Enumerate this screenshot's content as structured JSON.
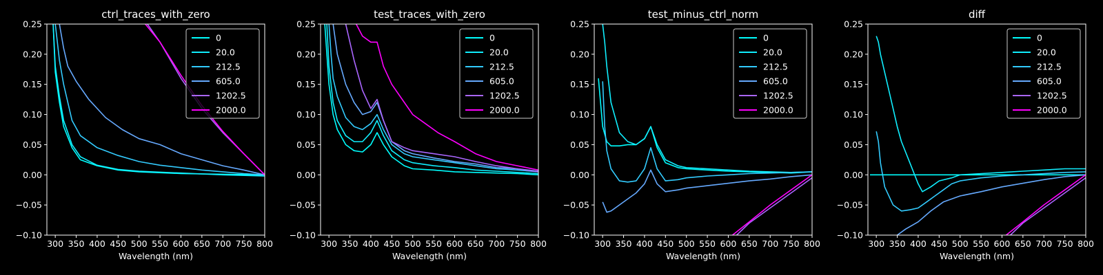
{
  "legend": {
    "labels": [
      "0",
      "20.0",
      "212.5",
      "605.0",
      "1202.5",
      "2000.0"
    ],
    "colors": [
      "#00ffff",
      "#10efff",
      "#33ccff",
      "#66aaff",
      "#aa66ff",
      "#ff00ff"
    ]
  },
  "chart_data": [
    {
      "type": "line",
      "title": "ctrl_traces_with_zero",
      "xlabel": "Wavelength (nm)",
      "xlim": [
        280,
        800
      ],
      "ylim": [
        -0.1,
        0.25
      ],
      "xticks": [
        "300",
        "350",
        "400",
        "450",
        "500",
        "550",
        "600",
        "650",
        "700",
        "750",
        "800"
      ],
      "yticks": [
        "−0.10",
        "−0.05",
        "0.00",
        "0.05",
        "0.10",
        "0.15",
        "0.20",
        "0.25"
      ],
      "series": [
        {
          "name": "0",
          "color": "#00ffff",
          "x": [
            295,
            300,
            310,
            320,
            340,
            360,
            400,
            450,
            500,
            600,
            700,
            800
          ],
          "y": [
            0.25,
            0.17,
            0.12,
            0.08,
            0.045,
            0.025,
            0.015,
            0.008,
            0.005,
            0.002,
            0.001,
            0.0
          ]
        },
        {
          "name": "20.0",
          "color": "#10efff",
          "x": [
            295,
            300,
            310,
            320,
            340,
            360,
            400,
            450,
            500,
            600,
            700,
            800
          ],
          "y": [
            0.25,
            0.18,
            0.13,
            0.09,
            0.05,
            0.03,
            0.016,
            0.009,
            0.006,
            0.003,
            0.0,
            -0.002
          ]
        },
        {
          "name": "212.5",
          "color": "#33ccff",
          "x": [
            300,
            310,
            320,
            340,
            360,
            400,
            450,
            500,
            550,
            600,
            650,
            700,
            750,
            800
          ],
          "y": [
            0.25,
            0.19,
            0.15,
            0.09,
            0.065,
            0.045,
            0.032,
            0.022,
            0.016,
            0.012,
            0.008,
            0.005,
            0.002,
            0.0
          ]
        },
        {
          "name": "605.0",
          "color": "#66aaff",
          "x": [
            310,
            320,
            330,
            350,
            380,
            420,
            460,
            500,
            550,
            600,
            650,
            700,
            750,
            800
          ],
          "y": [
            0.25,
            0.21,
            0.18,
            0.155,
            0.125,
            0.095,
            0.075,
            0.06,
            0.05,
            0.035,
            0.025,
            0.015,
            0.008,
            0.0
          ]
        },
        {
          "name": "1202.5",
          "color": "#aa66ff",
          "x": [
            520,
            550,
            600,
            650,
            700,
            750,
            800
          ],
          "y": [
            0.25,
            0.22,
            0.16,
            0.11,
            0.07,
            0.035,
            0.0
          ]
        },
        {
          "name": "2000.0",
          "color": "#ff00ff",
          "x": [
            515,
            550,
            600,
            650,
            700,
            750,
            800
          ],
          "y": [
            0.25,
            0.22,
            0.165,
            0.115,
            0.072,
            0.035,
            0.0
          ]
        }
      ]
    },
    {
      "type": "line",
      "title": "test_traces_with_zero",
      "xlabel": "Wavelength (nm)",
      "xlim": [
        280,
        800
      ],
      "ylim": [
        -0.1,
        0.25
      ],
      "xticks": [
        "300",
        "350",
        "400",
        "450",
        "500",
        "550",
        "600",
        "650",
        "700",
        "750",
        "800"
      ],
      "yticks": [
        "−0.10",
        "−0.05",
        "0.00",
        "0.05",
        "0.10",
        "0.15",
        "0.20",
        "0.25"
      ],
      "series": [
        {
          "name": "0",
          "color": "#00ffff",
          "x": [
            290,
            300,
            310,
            320,
            340,
            360,
            380,
            400,
            415,
            430,
            450,
            480,
            500,
            550,
            600,
            650,
            700,
            750,
            800
          ],
          "y": [
            0.25,
            0.15,
            0.1,
            0.075,
            0.05,
            0.04,
            0.038,
            0.05,
            0.07,
            0.05,
            0.03,
            0.015,
            0.01,
            0.008,
            0.005,
            0.004,
            0.003,
            0.002,
            0.0
          ]
        },
        {
          "name": "20.0",
          "color": "#10efff",
          "x": [
            295,
            300,
            310,
            320,
            340,
            360,
            380,
            400,
            415,
            430,
            450,
            480,
            500,
            550,
            600,
            650,
            700,
            750,
            800
          ],
          "y": [
            0.25,
            0.18,
            0.12,
            0.09,
            0.065,
            0.055,
            0.055,
            0.07,
            0.09,
            0.065,
            0.04,
            0.025,
            0.02,
            0.015,
            0.012,
            0.008,
            0.006,
            0.004,
            0.002
          ]
        },
        {
          "name": "212.5",
          "color": "#33ccff",
          "x": [
            300,
            305,
            310,
            320,
            340,
            360,
            380,
            400,
            415,
            430,
            450,
            480,
            500,
            550,
            600,
            650,
            700,
            750,
            800
          ],
          "y": [
            0.25,
            0.2,
            0.16,
            0.13,
            0.095,
            0.08,
            0.075,
            0.085,
            0.1,
            0.075,
            0.05,
            0.035,
            0.03,
            0.025,
            0.02,
            0.015,
            0.01,
            0.008,
            0.005
          ]
        },
        {
          "name": "605.0",
          "color": "#66aaff",
          "x": [
            310,
            320,
            340,
            360,
            380,
            400,
            415,
            430,
            450,
            480,
            500,
            550,
            600,
            650,
            700,
            750,
            800
          ],
          "y": [
            0.25,
            0.2,
            0.15,
            0.12,
            0.1,
            0.105,
            0.12,
            0.09,
            0.055,
            0.04,
            0.035,
            0.028,
            0.022,
            0.018,
            0.012,
            0.01,
            0.006
          ]
        },
        {
          "name": "1202.5",
          "color": "#aa66ff",
          "x": [
            340,
            360,
            380,
            400,
            415,
            430,
            450,
            480,
            500,
            550,
            600,
            650,
            700,
            750,
            800
          ],
          "y": [
            0.25,
            0.19,
            0.14,
            0.11,
            0.125,
            0.09,
            0.055,
            0.045,
            0.04,
            0.035,
            0.03,
            0.022,
            0.015,
            0.01,
            0.005
          ]
        },
        {
          "name": "2000.0",
          "color": "#ff00ff",
          "x": [
            365,
            380,
            400,
            415,
            430,
            450,
            480,
            500,
            530,
            560,
            600,
            650,
            700,
            750,
            800
          ],
          "y": [
            0.25,
            0.23,
            0.22,
            0.22,
            0.18,
            0.15,
            0.12,
            0.1,
            0.085,
            0.07,
            0.055,
            0.035,
            0.022,
            0.015,
            0.008
          ]
        }
      ]
    },
    {
      "type": "line",
      "title": "test_minus_ctrl_norm",
      "xlabel": "Wavelength (nm)",
      "xlim": [
        280,
        800
      ],
      "ylim": [
        -0.1,
        0.25
      ],
      "xticks": [
        "300",
        "350",
        "400",
        "450",
        "500",
        "550",
        "600",
        "650",
        "700",
        "750",
        "800"
      ],
      "yticks": [
        "−0.10",
        "−0.05",
        "0.00",
        "0.05",
        "0.10",
        "0.15",
        "0.20",
        "0.25"
      ],
      "series": [
        {
          "name": "0",
          "color": "#00ffff",
          "x": [
            290,
            300,
            310,
            320,
            340,
            360,
            380,
            400,
            415,
            430,
            450,
            480,
            500,
            550,
            600,
            650,
            700,
            750,
            800
          ],
          "y": [
            0.16,
            0.08,
            0.055,
            0.048,
            0.048,
            0.05,
            0.05,
            0.06,
            0.08,
            0.045,
            0.02,
            0.012,
            0.01,
            0.008,
            0.006,
            0.005,
            0.004,
            0.003,
            0.005
          ]
        },
        {
          "name": "20.0",
          "color": "#10efff",
          "x": [
            300,
            305,
            310,
            320,
            340,
            360,
            380,
            400,
            415,
            430,
            450,
            480,
            500,
            550,
            600,
            650,
            700,
            750,
            800
          ],
          "y": [
            0.25,
            0.22,
            0.18,
            0.12,
            0.07,
            0.055,
            0.05,
            0.06,
            0.08,
            0.05,
            0.025,
            0.015,
            0.012,
            0.01,
            0.008,
            0.006,
            0.005,
            0.004,
            0.005
          ]
        },
        {
          "name": "212.5",
          "color": "#33ccff",
          "x": [
            300,
            305,
            310,
            320,
            340,
            360,
            380,
            400,
            415,
            430,
            450,
            480,
            500,
            550,
            600,
            650,
            700,
            750,
            800
          ],
          "y": [
            0.155,
            0.08,
            0.04,
            0.01,
            -0.01,
            -0.012,
            -0.01,
            0.01,
            0.045,
            0.01,
            -0.01,
            -0.008,
            -0.005,
            -0.002,
            0.0,
            0.002,
            0.003,
            0.004,
            0.005
          ]
        },
        {
          "name": "605.0",
          "color": "#66aaff",
          "x": [
            300,
            310,
            320,
            340,
            360,
            380,
            400,
            415,
            430,
            450,
            480,
            500,
            550,
            600,
            650,
            700,
            750,
            800
          ],
          "y": [
            -0.045,
            -0.062,
            -0.06,
            -0.05,
            -0.04,
            -0.03,
            -0.015,
            0.008,
            -0.015,
            -0.028,
            -0.025,
            -0.022,
            -0.018,
            -0.014,
            -0.01,
            -0.007,
            -0.003,
            0.0
          ]
        },
        {
          "name": "1202.5",
          "color": "#aa66ff",
          "x": [
            620,
            650,
            700,
            750,
            800
          ],
          "y": [
            -0.1,
            -0.08,
            -0.055,
            -0.03,
            -0.005
          ]
        },
        {
          "name": "2000.0",
          "color": "#ff00ff",
          "x": [
            610,
            650,
            700,
            750,
            800
          ],
          "y": [
            -0.1,
            -0.078,
            -0.05,
            -0.025,
            0.0
          ]
        }
      ]
    },
    {
      "type": "line",
      "title": "diff",
      "xlabel": "Wavelength (nm)",
      "xlim": [
        280,
        800
      ],
      "ylim": [
        -0.1,
        0.25
      ],
      "xticks": [
        "300",
        "350",
        "400",
        "450",
        "500",
        "550",
        "600",
        "650",
        "700",
        "750",
        "800"
      ],
      "yticks": [
        "−0.10",
        "−0.05",
        "0.00",
        "0.05",
        "0.10",
        "0.15",
        "0.20",
        "0.25"
      ],
      "series": [
        {
          "name": "0",
          "color": "#00ffff",
          "x": [
            285,
            800
          ],
          "y": [
            0.0,
            0.0
          ]
        },
        {
          "name": "20.0",
          "color": "#10efff",
          "x": [
            300,
            305,
            310,
            320,
            330,
            340,
            350,
            360,
            380,
            400,
            410,
            430,
            450,
            480,
            500,
            550,
            600,
            650,
            700,
            750,
            800
          ],
          "y": [
            0.23,
            0.22,
            0.2,
            0.17,
            0.14,
            0.11,
            0.08,
            0.055,
            0.02,
            -0.015,
            -0.028,
            -0.02,
            -0.01,
            -0.005,
            0.0,
            0.002,
            0.004,
            0.006,
            0.008,
            0.01,
            0.01
          ]
        },
        {
          "name": "212.5",
          "color": "#33ccff",
          "x": [
            300,
            305,
            310,
            320,
            340,
            360,
            380,
            400,
            420,
            440,
            460,
            480,
            500,
            550,
            600,
            650,
            700,
            750,
            800
          ],
          "y": [
            0.072,
            0.055,
            0.02,
            -0.02,
            -0.05,
            -0.06,
            -0.058,
            -0.055,
            -0.045,
            -0.035,
            -0.025,
            -0.015,
            -0.01,
            -0.005,
            -0.002,
            0.0,
            0.002,
            0.004,
            0.005
          ]
        },
        {
          "name": "605.0",
          "color": "#66aaff",
          "x": [
            350,
            370,
            400,
            430,
            460,
            500,
            550,
            600,
            650,
            700,
            750,
            800
          ],
          "y": [
            -0.1,
            -0.09,
            -0.078,
            -0.06,
            -0.045,
            -0.035,
            -0.028,
            -0.02,
            -0.014,
            -0.008,
            -0.003,
            0.0
          ]
        },
        {
          "name": "1202.5",
          "color": "#aa66ff",
          "x": [
            620,
            650,
            700,
            750,
            800
          ],
          "y": [
            -0.1,
            -0.08,
            -0.055,
            -0.03,
            -0.005
          ]
        },
        {
          "name": "2000.0",
          "color": "#ff00ff",
          "x": [
            610,
            650,
            700,
            750,
            800
          ],
          "y": [
            -0.1,
            -0.078,
            -0.05,
            -0.025,
            0.0
          ]
        }
      ]
    }
  ]
}
